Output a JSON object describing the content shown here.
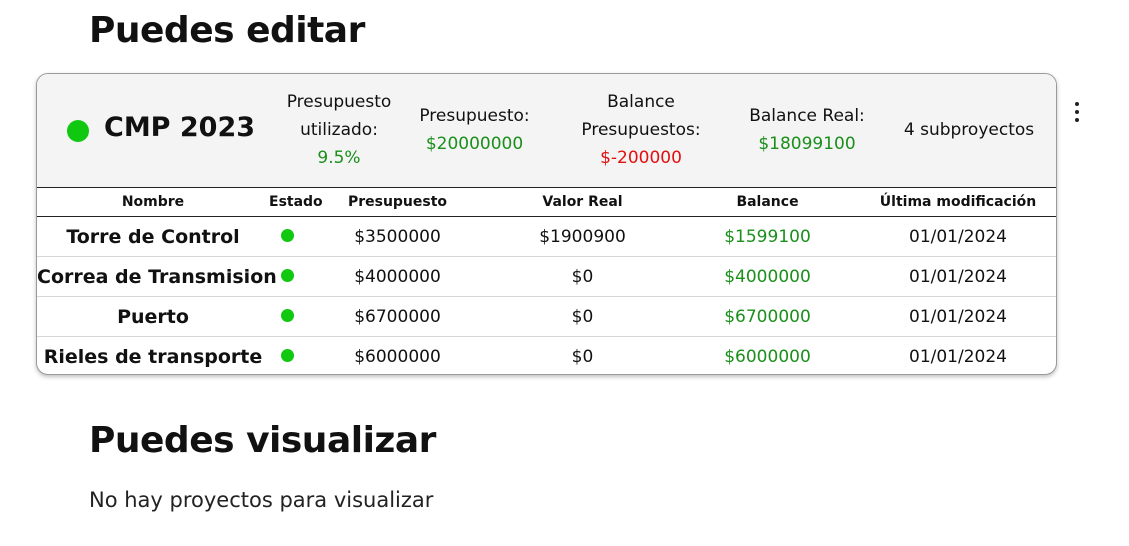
{
  "sections": {
    "edit_title": "Puedes editar",
    "view_title": "Puedes visualizar",
    "view_empty": "No hay proyectos para visualizar"
  },
  "project": {
    "name": "CMP 2023",
    "status_color": "#11c811",
    "stats": {
      "used_label_1": "Presupuesto",
      "used_label_2": "utilizado:",
      "used_value": "9.5%",
      "budget_label": "Presupuesto:",
      "budget_value": "$20000000",
      "balance_budget_label_1": "Balance",
      "balance_budget_label_2": "Presupuestos:",
      "balance_budget_value": "$-200000",
      "balance_real_label": "Balance Real:",
      "balance_real_value": "$18099100",
      "subprojects": "4 subproyectos"
    },
    "colors": {
      "positive": "#1a8f1a",
      "negative": "#e31010"
    },
    "menu_icon": "more-vertical-icon",
    "table": {
      "headers": [
        "Nombre",
        "Estado",
        "Presupuesto",
        "Valor Real",
        "Balance",
        "Última modificación"
      ],
      "rows": [
        {
          "name": "Torre de Control",
          "budget": "$3500000",
          "real": "$1900900",
          "balance": "$1599100",
          "modified": "01/01/2024"
        },
        {
          "name": "Correa de Transmision",
          "budget": "$4000000",
          "real": "$0",
          "balance": "$4000000",
          "modified": "01/01/2024"
        },
        {
          "name": "Puerto",
          "budget": "$6700000",
          "real": "$0",
          "balance": "$6700000",
          "modified": "01/01/2024"
        },
        {
          "name": "Rieles de transporte",
          "budget": "$6000000",
          "real": "$0",
          "balance": "$6000000",
          "modified": "01/01/2024"
        }
      ]
    }
  }
}
